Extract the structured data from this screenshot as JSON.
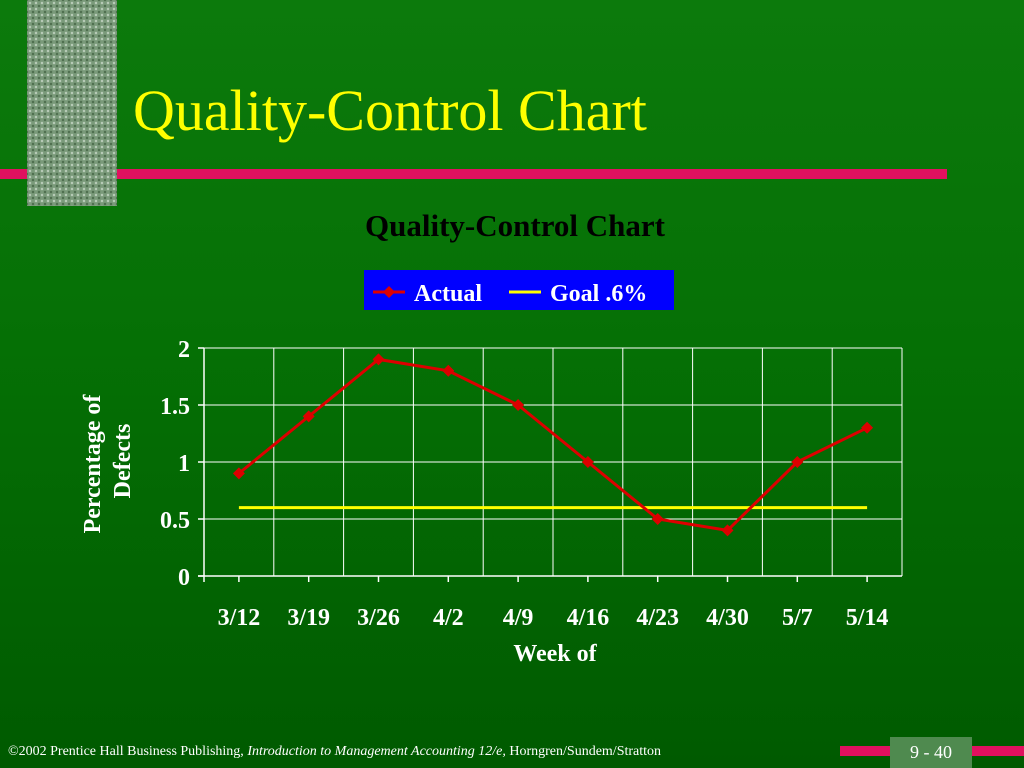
{
  "slide": {
    "title": "Quality-Control Chart"
  },
  "colors": {
    "accent_bar": "#e0115f",
    "title": "#ffff00",
    "actual_series": "#dd0000",
    "goal_series": "#ffff00",
    "legend_bg": "#0000ff",
    "gridline": "#ffffff"
  },
  "footer": {
    "copyright": "©2002 Prentice Hall Business Publishing,",
    "book_title": "Introduction to Management Accounting 12/e,",
    "authors": "Horngren/Sundem/Stratton",
    "page_number": "9 - 40"
  },
  "chart_data": {
    "type": "line",
    "title": "Quality-Control Chart",
    "xlabel": "Week of",
    "ylabel": "Percentage of Defects",
    "ylabel_lines": [
      "Percentage of",
      "Defects"
    ],
    "categories": [
      "3/12",
      "3/19",
      "3/26",
      "4/2",
      "4/9",
      "4/16",
      "4/23",
      "4/30",
      "5/7",
      "5/14"
    ],
    "ylim": [
      0,
      2
    ],
    "yticks": [
      0,
      0.5,
      1,
      1.5,
      2
    ],
    "ytick_labels": [
      "0",
      "0.5",
      "1",
      "1.5",
      "2"
    ],
    "grid": true,
    "legend_position": "top-center",
    "series": [
      {
        "name": "Actual",
        "values": [
          0.9,
          1.4,
          1.9,
          1.8,
          1.5,
          1.0,
          0.5,
          0.4,
          1.0,
          1.3
        ],
        "color": "#dd0000",
        "marker": "diamond"
      },
      {
        "name": "Goal .6%",
        "values": [
          0.6,
          0.6,
          0.6,
          0.6,
          0.6,
          0.6,
          0.6,
          0.6,
          0.6,
          0.6
        ],
        "color": "#ffff00",
        "marker": "none"
      }
    ]
  }
}
